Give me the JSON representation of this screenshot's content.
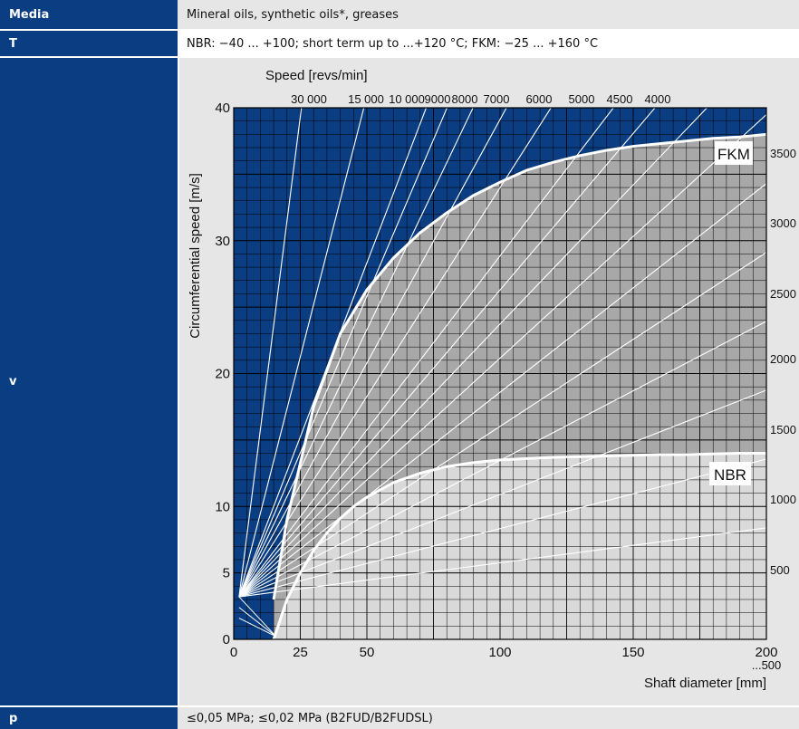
{
  "table": {
    "media": {
      "label": "Media",
      "value": "Mineral oils, synthetic oils*, greases"
    },
    "temperature": {
      "label": "T",
      "value": "NBR: −40 ... +100; short term up to ...+120 °C; FKM: −25 ... +160 °C"
    },
    "velocity": {
      "label": "v"
    },
    "pressure": {
      "label": "p",
      "value": "≤0,05 MPa; ≤0,02 MPa (B2FUD/B2FUDSL)"
    }
  },
  "colors": {
    "label_bg": "#0a3d82",
    "row_grey": "#e6e6e6",
    "chart_blue": "#0a3d82",
    "fkm_fill": "#a8a8a8",
    "nbr_fill": "#d9d9d9",
    "grid_line": "#000000",
    "speed_line": "#ffffff"
  },
  "chart_data": {
    "type": "line",
    "title": "",
    "top_axis_title": "Speed [revs/min]",
    "ylabel": "Circumferential speed [m/s]",
    "xlabel": "Shaft diameter [mm]",
    "x_extra_label": "...500",
    "xlim": [
      0,
      200
    ],
    "ylim": [
      0,
      40
    ],
    "x_ticks": [
      0,
      25,
      50,
      100,
      150,
      200
    ],
    "y_ticks": [
      0,
      5,
      10,
      20,
      30,
      40
    ],
    "grid": true,
    "speed_lines_rpm": [
      30000,
      15000,
      10000,
      9000,
      8000,
      7000,
      6000,
      5000,
      4500,
      4000,
      3500,
      3000,
      2500,
      2000,
      1500,
      1000,
      500
    ],
    "top_speed_labels": [
      "30 000",
      "15 000",
      "10 000",
      "9000",
      "8000",
      "7000",
      "6000",
      "5000",
      "4500",
      "4000"
    ],
    "right_speed_labels": [
      "3500",
      "3000",
      "2500",
      "2000",
      "1500",
      "1000",
      "500"
    ],
    "series": [
      {
        "name": "FKM",
        "x": [
          15,
          20,
          30,
          40,
          50,
          60,
          70,
          80,
          90,
          100,
          110,
          120,
          130,
          140,
          150,
          160,
          170,
          180,
          190,
          200
        ],
        "y": [
          3,
          9,
          17.5,
          23.0,
          26.3,
          28.7,
          30.6,
          32.1,
          33.4,
          34.4,
          35.3,
          35.9,
          36.4,
          36.8,
          37.1,
          37.3,
          37.5,
          37.7,
          37.8,
          38
        ]
      },
      {
        "name": "NBR",
        "x": [
          15,
          20,
          25,
          30,
          35,
          40,
          45,
          50,
          60,
          70,
          80,
          90,
          100,
          110,
          120,
          130,
          140,
          150,
          160,
          170,
          180,
          190,
          200
        ],
        "y": [
          0,
          3.0,
          5.0,
          6.7,
          8.0,
          9.1,
          10.0,
          10.7,
          11.8,
          12.5,
          13.0,
          13.3,
          13.5,
          13.6,
          13.7,
          13.75,
          13.8,
          13.85,
          13.9,
          13.9,
          13.95,
          14.0,
          14.0
        ]
      }
    ]
  }
}
